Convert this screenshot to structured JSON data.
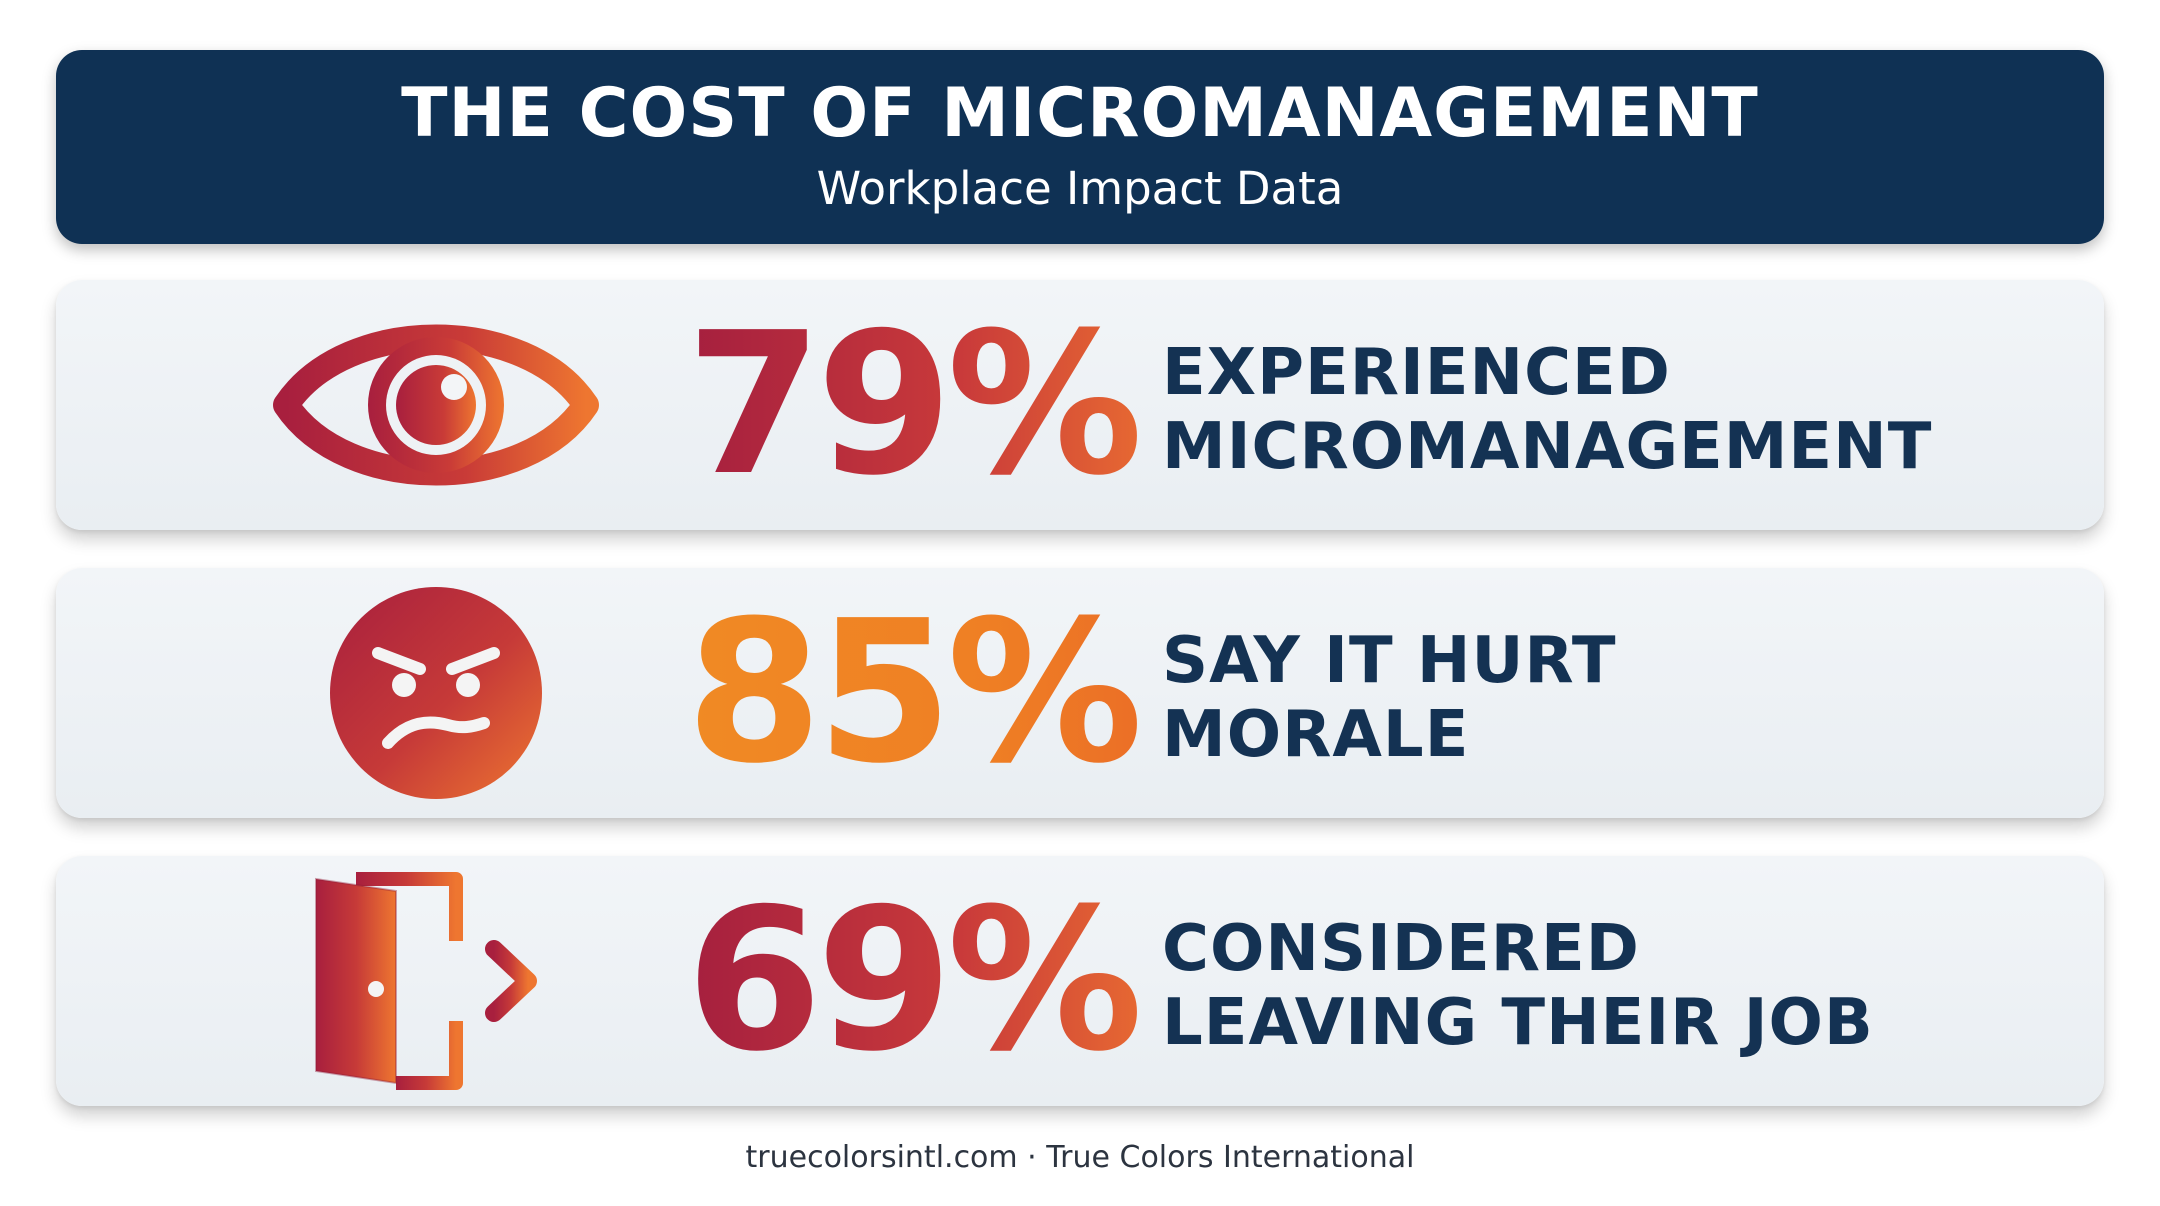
{
  "header": {
    "title": "THE COST OF MICROMANAGEMENT",
    "subtitle": "Workplace Impact Data"
  },
  "stats": [
    {
      "value": "79%",
      "label_lines": [
        "EXPERIENCED",
        "MICROMANAGEMENT"
      ],
      "icon": "eye-icon"
    },
    {
      "value": "85%",
      "label_lines": [
        "SAY IT HURT",
        "MORALE"
      ],
      "icon": "angry-face-icon"
    },
    {
      "value": "69%",
      "label_lines": [
        "CONSIDERED",
        "LEAVING THEIR JOB"
      ],
      "icon": "exit-door-icon"
    }
  ],
  "footer": {
    "text": "truecolorsintl.com · True Colors International"
  },
  "colors": {
    "header_bg": "#0f3154",
    "label_text": "#143253",
    "accent_red": "#b22a3e",
    "accent_orange": "#ef7f24"
  }
}
